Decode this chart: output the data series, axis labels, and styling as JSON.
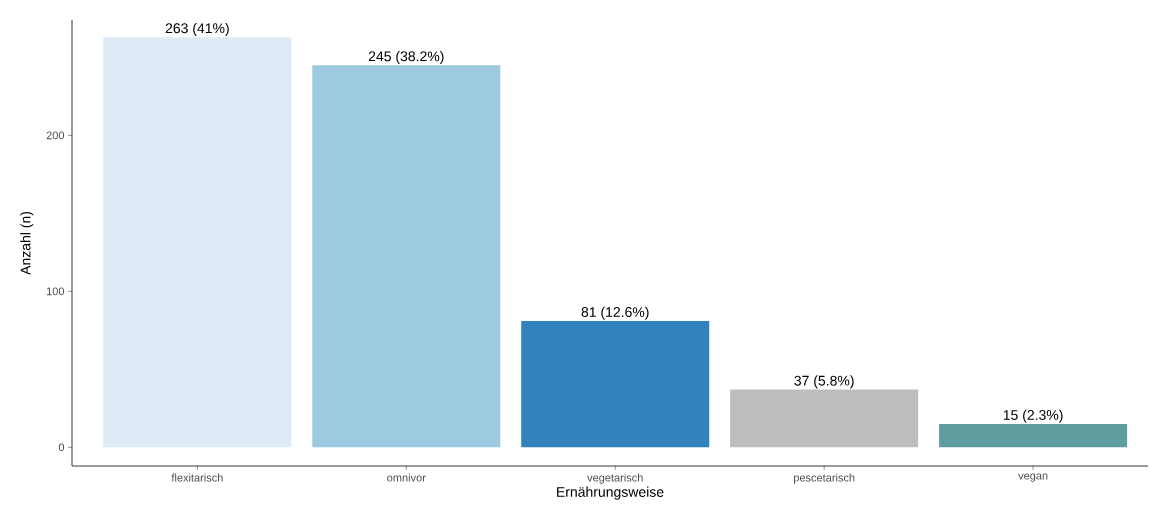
{
  "chart_data": {
    "type": "bar",
    "xlabel": "Ernährungsweise",
    "ylabel": "Anzahl (n)",
    "categories": [
      "flexitarisch",
      "omnivor",
      "vegetarisch",
      "pescetarisch",
      "vegan"
    ],
    "values": [
      263,
      245,
      81,
      37,
      15
    ],
    "colors": [
      "#deebf7",
      "#9ecae1",
      "#3182bd",
      "#bdbdbd",
      "#5f9ea0"
    ],
    "value_labels": [
      "263 (41%)",
      "245 (38.2%)",
      "81 (12.6%)",
      "37 (5.8%)",
      "15 (2.3%)"
    ],
    "ylim": [
      -12,
      274
    ],
    "yticks": [
      0,
      100,
      200
    ],
    "grid": false
  }
}
